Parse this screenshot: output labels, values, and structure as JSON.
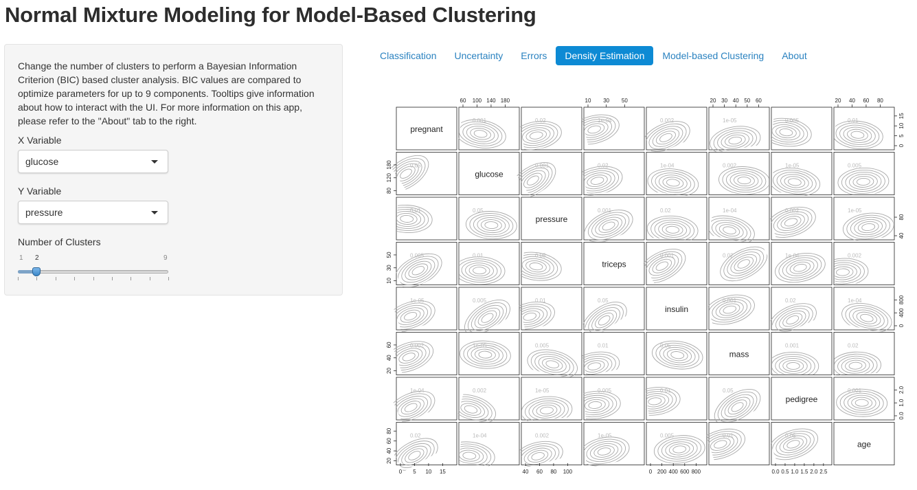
{
  "app_title": "Normal Mixture Modeling for Model-Based Clustering",
  "sidebar": {
    "description": "Change the number of clusters to perform a Bayesian Information Criterion (BIC) based cluster analysis. BIC values are compared to optimize parameters for up to 9 components. Tooltips give information about how to interact with the UI. For more information on this app, please refer to the \"About\" tab to the right.",
    "x_variable": {
      "label": "X Variable",
      "value": "glucose"
    },
    "y_variable": {
      "label": "Y Variable",
      "value": "pressure"
    },
    "clusters": {
      "label": "Number of Clusters",
      "min": "1",
      "max": "9",
      "value": "2"
    }
  },
  "tabs": [
    {
      "label": "Classification",
      "active": false
    },
    {
      "label": "Uncertainty",
      "active": false
    },
    {
      "label": "Errors",
      "active": false
    },
    {
      "label": "Density Estimation",
      "active": true
    },
    {
      "label": "Model-based Clustering",
      "active": false
    },
    {
      "label": "About",
      "active": false
    }
  ],
  "plot": {
    "variables": [
      "pregnant",
      "glucose",
      "pressure",
      "triceps",
      "insulin",
      "mass",
      "pedigree",
      "age"
    ],
    "axis_ticks": {
      "pregnant": [
        "0",
        "5",
        "10",
        "15"
      ],
      "glucose": [
        "60",
        "100",
        "140",
        "180"
      ],
      "pressure": [
        "40",
        "60",
        "80",
        "100"
      ],
      "triceps": [
        "10",
        "30",
        "50"
      ],
      "insulin": [
        "0",
        "200",
        "400",
        "600",
        "800"
      ],
      "mass": [
        "20",
        "30",
        "40",
        "50",
        "60"
      ],
      "pedigree": [
        "0.0",
        "0.5",
        "1.0",
        "1.5",
        "2.0",
        "2.5"
      ],
      "age": [
        "20",
        "40",
        "60",
        "80"
      ]
    },
    "left_ticks": {
      "glucose": [
        "80",
        "120",
        "180"
      ],
      "triceps": [
        "10",
        "30",
        "50"
      ],
      "mass": [
        "20",
        "40",
        "60"
      ],
      "age": [
        "20",
        "40",
        "60",
        "80"
      ]
    },
    "right_ticks": {
      "pregnant": [
        "0",
        "5",
        "10",
        "15"
      ],
      "pressure": [
        "40",
        "80"
      ],
      "insulin": [
        "0",
        "400",
        "800"
      ],
      "pedigree": [
        "0.0",
        "1.0",
        "2.0"
      ]
    },
    "contour_labels": [
      "2e-04",
      "0.001",
      "0.02",
      "1e-04",
      "0.002",
      "1e-05",
      "0.005",
      "0.01",
      "0.05"
    ],
    "contour_color": "#a8a8a8"
  }
}
